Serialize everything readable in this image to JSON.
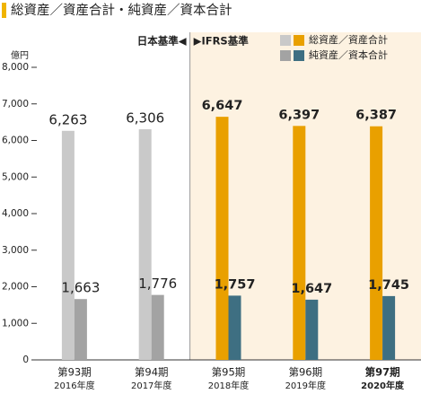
{
  "chart_data": {
    "type": "bar",
    "title": "総資産／資産合計・純資産／資本合計",
    "y_label": "億円",
    "annotations": [
      "日本基準◀",
      "▶IFRS基準"
    ],
    "categories": [
      "第93期",
      "第94期",
      "第95期",
      "第96期",
      "第97期"
    ],
    "category_years": [
      "2016年度",
      "2017年度",
      "2018年度",
      "2019年度",
      "2020年度"
    ],
    "series": [
      {
        "name": "総資産／資産合計",
        "values": [
          6263,
          6306,
          6647,
          6397,
          6387
        ],
        "value_labels": [
          "6,263",
          "6,306",
          "6,647",
          "6,397",
          "6,387"
        ],
        "colors": [
          "#c9c9c9",
          "#c9c9c9",
          "#e9a000",
          "#e9a000",
          "#e9a000"
        ]
      },
      {
        "name": "純資産／資本合計",
        "values": [
          1663,
          1776,
          1757,
          1647,
          1745
        ],
        "value_labels": [
          "1,663",
          "1,776",
          "1,757",
          "1,647",
          "1,745"
        ],
        "colors": [
          "#a3a3a3",
          "#a3a3a3",
          "#3e6f82",
          "#3e6f82",
          "#3e6f82"
        ]
      }
    ],
    "ylim": [
      0,
      8000
    ],
    "yticks": [
      0,
      {
        "value": 1000,
        "label": "1,000"
      },
      {
        "value": 2000,
        "label": "2,000"
      },
      {
        "value": 3000,
        "label": "3,000"
      },
      {
        "value": 4000,
        "label": "4,000"
      },
      {
        "value": 5000,
        "label": "5,000"
      },
      {
        "value": 6000,
        "label": "6,000"
      },
      {
        "value": 7000,
        "label": "7,000"
      },
      {
        "value": 8000,
        "label": "8,000"
      }
    ]
  }
}
